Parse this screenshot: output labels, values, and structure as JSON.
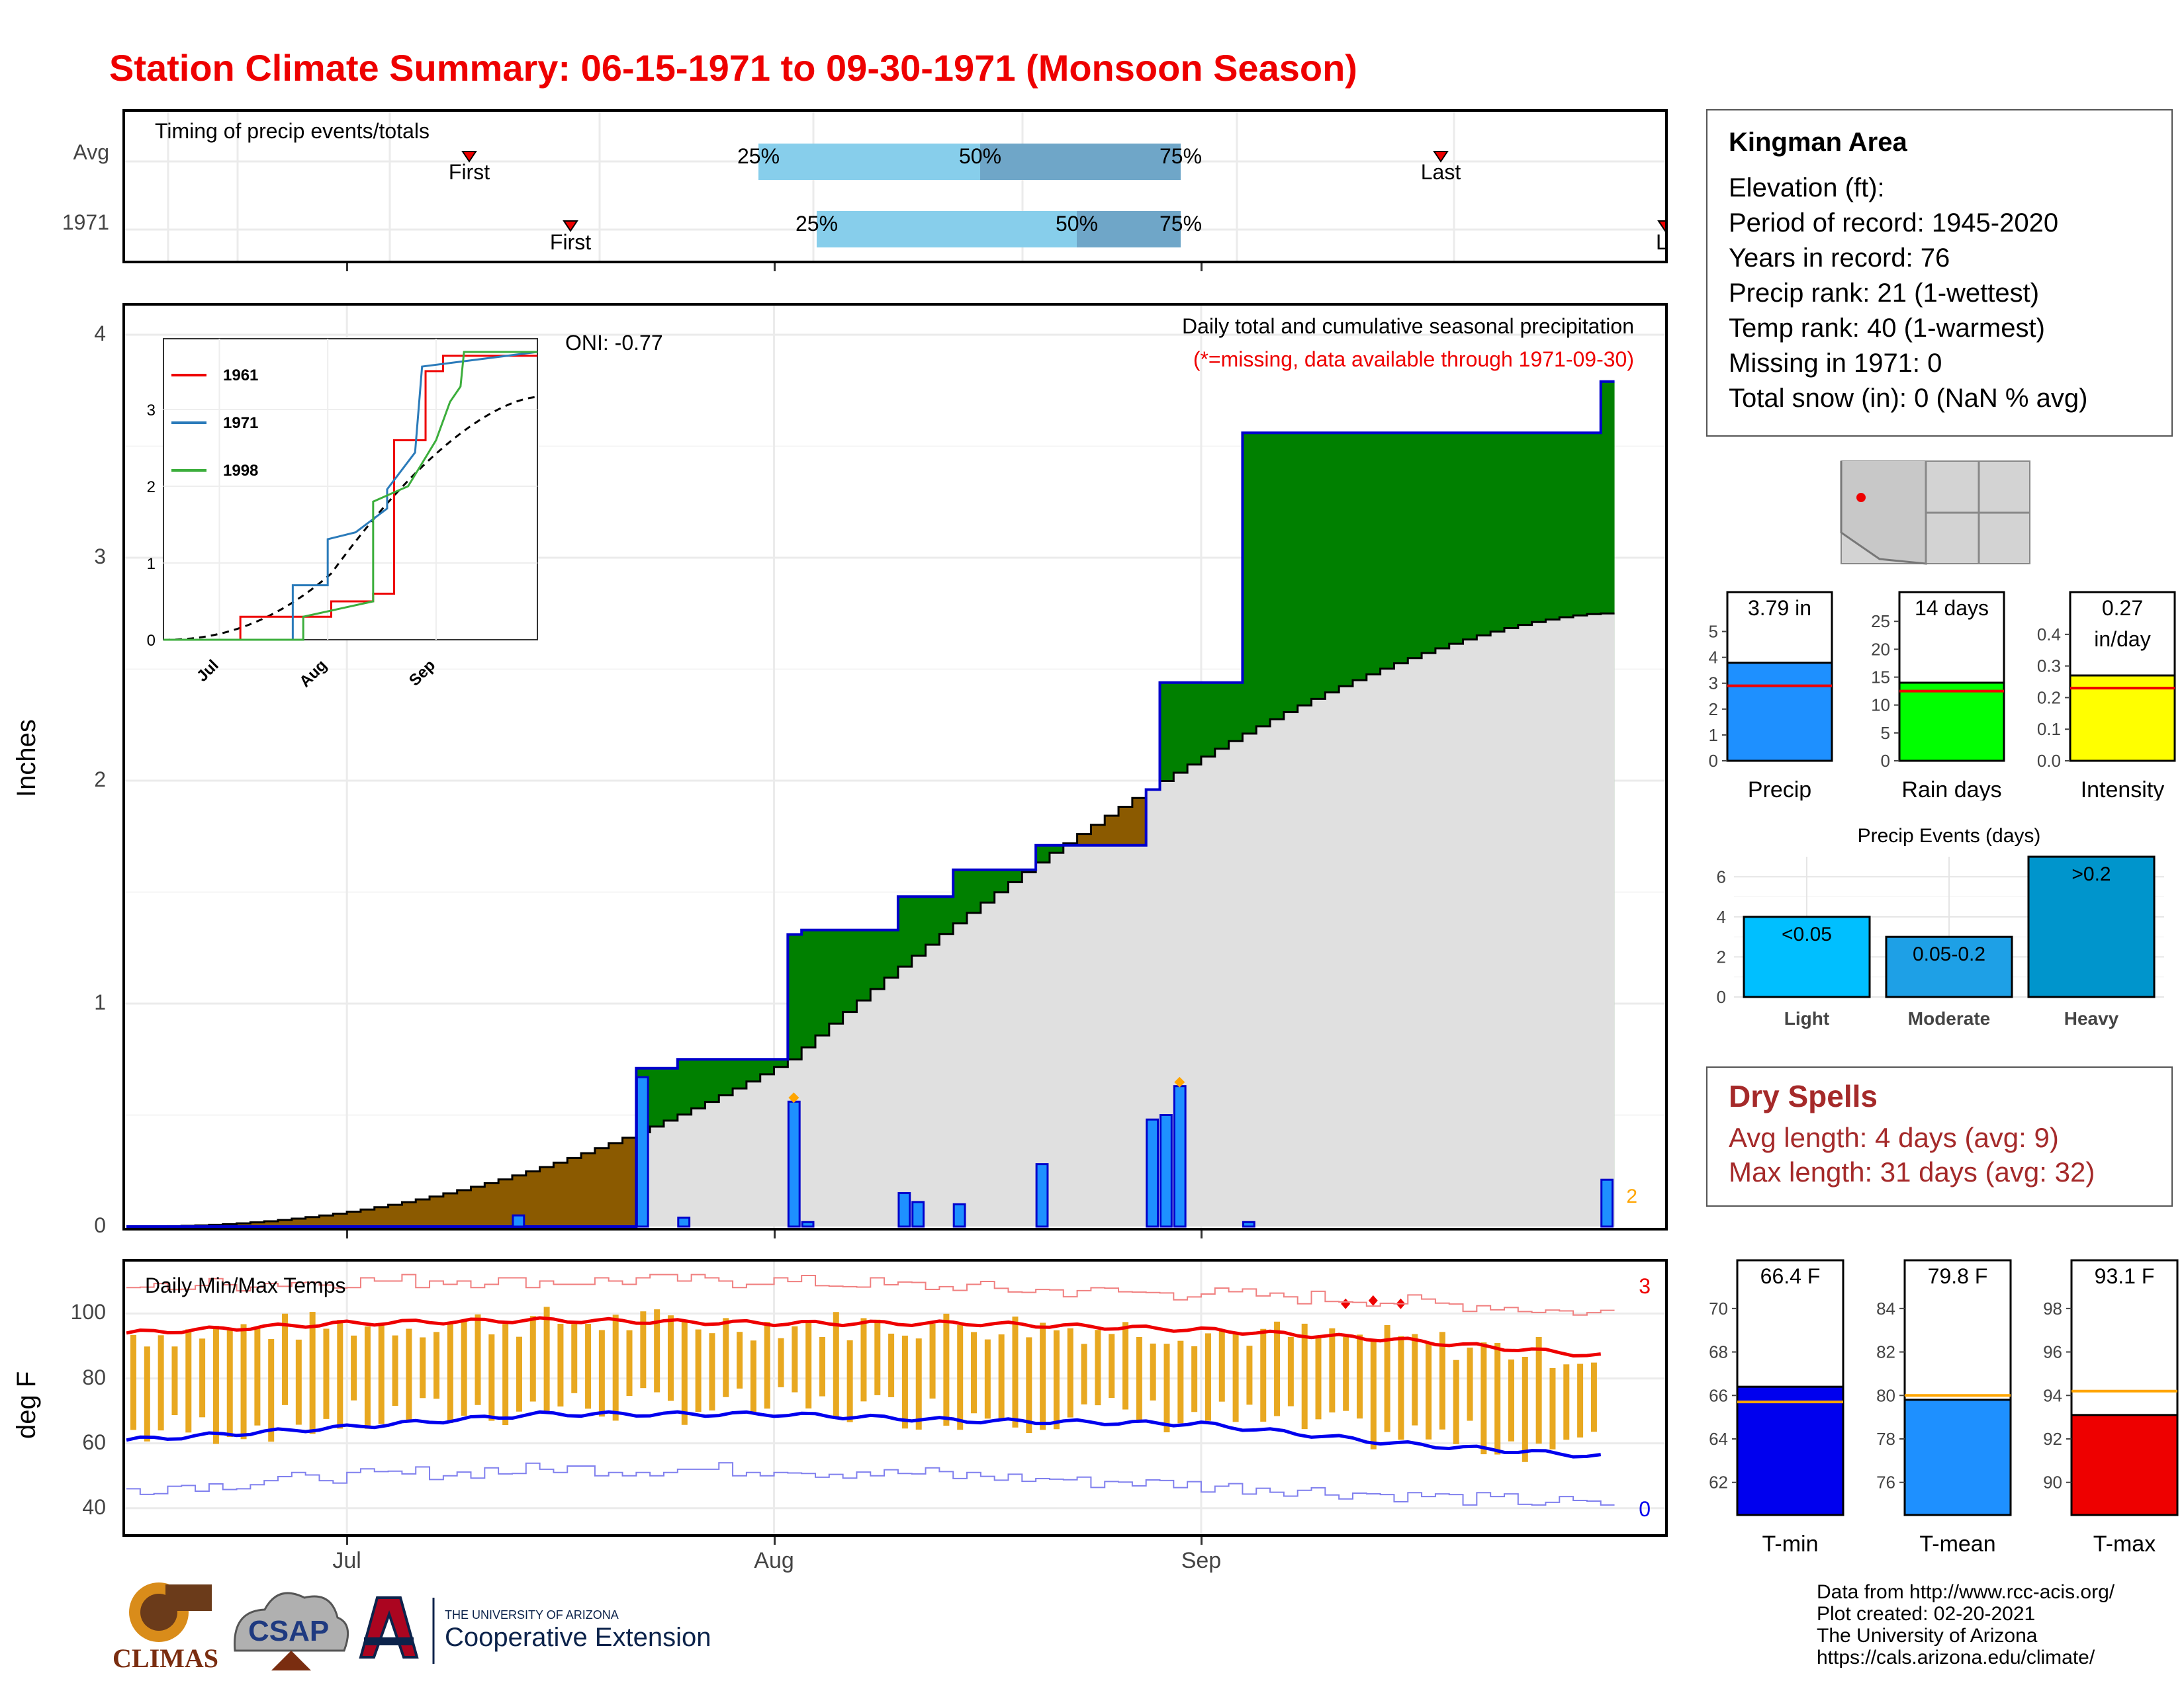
{
  "title": "Station Climate Summary: 06-15-1971 to 09-30-1971 (Monsoon Season)",
  "colors": {
    "title": "#ee0000",
    "seasonal_fill": "#008000",
    "deficit_fill": "#8b5a00",
    "normal_fill": "#e0e0e0",
    "daily_bar": "#1e90ff",
    "tmax": "#ee0000",
    "tmin": "#0000ee",
    "temp_bar": "#e8a820",
    "dry_spell": "#a52a2a"
  },
  "timing": {
    "label": "Timing of precip events/totals",
    "rows": [
      "Avg",
      "1971"
    ],
    "avg": {
      "first": "First",
      "last": "Last",
      "p25": "25%",
      "p50": "50%",
      "p75": "75%"
    },
    "year": {
      "first": "First",
      "last": "La",
      "p25": "25%",
      "p50": "50%",
      "p75": "75%"
    }
  },
  "info": {
    "station": "Kingman Area",
    "lines": [
      "Elevation (ft):",
      "Period of record: 1945-2020",
      "Years in record: 76",
      "Precip rank: 21 (1-wettest)",
      "Temp rank: 40 (1-warmest)",
      "Missing in 1971: 0",
      "Total snow (in): 0 (NaN % avg)"
    ]
  },
  "main_plot": {
    "ylabel": "Inches",
    "oni": "ONI: -0.77",
    "title": "Daily total and cumulative seasonal precipitation",
    "subtitle": "(*=missing, data available through 1971-09-30)",
    "y_ticks": [
      "0",
      "1",
      "2",
      "3",
      "4"
    ],
    "x_ticks": [
      "Jul",
      "Aug",
      "Sep"
    ],
    "corner_count": "2"
  },
  "inset": {
    "legend": [
      "1961",
      "1971",
      "1998"
    ],
    "y_ticks": [
      "0",
      "1",
      "2",
      "3"
    ],
    "x_ticks": [
      "Jul",
      "Aug",
      "Sep"
    ]
  },
  "temps": {
    "label": "Daily Min/Max Temps",
    "ylabel": "deg F",
    "y_ticks": [
      "40",
      "60",
      "80",
      "100"
    ],
    "max_count": "3",
    "min_count": "0"
  },
  "x_axis": [
    "Jul",
    "Aug",
    "Sep"
  ],
  "minicharts": {
    "precip": {
      "label": "Precip",
      "value": "3.79 in",
      "ticks": [
        "0",
        "1",
        "2",
        "3",
        "4",
        "5"
      ]
    },
    "raindays": {
      "label": "Rain days",
      "value": "14 days",
      "ticks": [
        "0",
        "5",
        "10",
        "15",
        "20",
        "25"
      ]
    },
    "intensity": {
      "label": "Intensity",
      "value": "0.27",
      "value2": "in/day",
      "ticks": [
        "0.0",
        "0.1",
        "0.2",
        "0.3",
        "0.4"
      ]
    }
  },
  "events": {
    "title": "Precip Events (days)",
    "cats": [
      "Light",
      "Moderate",
      "Heavy"
    ],
    "labels": [
      "<0.05",
      "0.05-0.2",
      ">0.2"
    ],
    "ticks": [
      "0",
      "2",
      "4",
      "6"
    ]
  },
  "dry": {
    "title": "Dry Spells",
    "avg": "Avg length: 4 days (avg: 9)",
    "max": "Max length: 31 days (avg: 32)"
  },
  "temp_bars": {
    "tmin": {
      "label": "T-min",
      "value": "66.4 F",
      "ticks": [
        "62",
        "64",
        "66",
        "68",
        "70"
      ]
    },
    "tmean": {
      "label": "T-mean",
      "value": "79.8 F",
      "ticks": [
        "76",
        "78",
        "80",
        "82",
        "84"
      ]
    },
    "tmax": {
      "label": "T-max",
      "value": "93.1 F",
      "ticks": [
        "90",
        "92",
        "94",
        "96",
        "98"
      ]
    }
  },
  "logos": {
    "climas": "CLIMAS",
    "csap": "CSAP",
    "ua_small": "THE UNIVERSITY OF ARIZONA",
    "ua_big": "Cooperative Extension"
  },
  "credits": [
    "Data from http://www.rcc-acis.org/",
    "Plot created: 02-20-2021",
    "The University of Arizona",
    "https://cals.arizona.edu/climate/"
  ],
  "chart_data": [
    {
      "type": "area",
      "title": "Daily total and cumulative seasonal precipitation",
      "ylabel": "Inches",
      "ylim": [
        0,
        4.1
      ],
      "x": [
        "06-15",
        "07-22",
        "07-25",
        "07-27",
        "08-02",
        "08-03",
        "08-10",
        "08-14",
        "08-20",
        "08-28",
        "08-29",
        "09-04",
        "09-30"
      ],
      "series": [
        {
          "name": "1971",
          "values": [
            0.0,
            0.71,
            0.75,
            0.75,
            1.31,
            1.33,
            1.48,
            1.6,
            1.71,
            1.96,
            2.44,
            3.56,
            3.79
          ]
        }
      ],
      "daily_bars": {
        "x": [
          "07-13",
          "07-22",
          "07-25",
          "08-02",
          "08-03",
          "08-10",
          "08-11",
          "08-14",
          "08-20",
          "08-28",
          "08-29",
          "08-30",
          "09-04",
          "09-30"
        ],
        "values": [
          0.05,
          0.67,
          0.04,
          0.56,
          0.02,
          0.15,
          0.11,
          0.1,
          0.28,
          0.48,
          0.5,
          0.63,
          0.02,
          0.21
        ]
      },
      "normal_end": 2.75
    },
    {
      "type": "line",
      "title": "Inset: cumulative precipitation comparison",
      "x_ticks": [
        "Jul",
        "Aug",
        "Sep"
      ],
      "ylim": [
        0,
        3.8
      ],
      "series": [
        {
          "name": "1961",
          "values": [
            0,
            0.3,
            0.5,
            0.6,
            2.6,
            3.5,
            3.7
          ]
        },
        {
          "name": "1971",
          "values": [
            0,
            0.05,
            0.75,
            1.5,
            3.1,
            3.6,
            3.6
          ]
        },
        {
          "name": "1998",
          "values": [
            0,
            0.2,
            0.5,
            1.8,
            2.0,
            3.1,
            3.8
          ]
        }
      ]
    },
    {
      "type": "line",
      "title": "Daily Min/Max Temps",
      "ylabel": "deg F",
      "ylim": [
        35,
        117
      ],
      "x": [
        "06-15",
        "07-01",
        "07-15",
        "08-01",
        "08-15",
        "09-01",
        "09-15",
        "09-30"
      ],
      "series": [
        {
          "name": "avg max",
          "values": [
            94,
            97,
            98,
            97,
            97,
            95,
            92,
            87
          ]
        },
        {
          "name": "avg min",
          "values": [
            61,
            65,
            69,
            69,
            67,
            66,
            60,
            56
          ]
        },
        {
          "name": "record max",
          "values": [
            108,
            110,
            110,
            110,
            108,
            106,
            104,
            100
          ]
        },
        {
          "name": "record min",
          "values": [
            46,
            50,
            52,
            52,
            50,
            47,
            44,
            41
          ]
        }
      ]
    },
    {
      "type": "bar",
      "categories": [
        "Precip"
      ],
      "values": [
        3.79
      ],
      "avg": 2.9,
      "ylim": [
        0,
        5.5
      ]
    },
    {
      "type": "bar",
      "categories": [
        "Rain days"
      ],
      "values": [
        14
      ],
      "avg": 12.5,
      "ylim": [
        0,
        25
      ]
    },
    {
      "type": "bar",
      "categories": [
        "Intensity"
      ],
      "values": [
        0.27
      ],
      "avg": 0.23,
      "ylim": [
        0,
        0.45
      ]
    },
    {
      "type": "bar",
      "title": "Precip Events (days)",
      "categories": [
        "Light",
        "Moderate",
        "Heavy"
      ],
      "values": [
        4,
        3,
        7
      ],
      "ylim": [
        0,
        7
      ]
    },
    {
      "type": "bar",
      "categories": [
        "T-min"
      ],
      "values": [
        66.4
      ],
      "avg": 65.7,
      "ylim": [
        60.5,
        71
      ]
    },
    {
      "type": "bar",
      "categories": [
        "T-mean"
      ],
      "values": [
        79.8
      ],
      "avg": 80.0,
      "ylim": [
        74.5,
        85
      ]
    },
    {
      "type": "bar",
      "categories": [
        "T-max"
      ],
      "values": [
        93.1
      ],
      "avg": 94.2,
      "ylim": [
        88.5,
        99
      ]
    }
  ]
}
